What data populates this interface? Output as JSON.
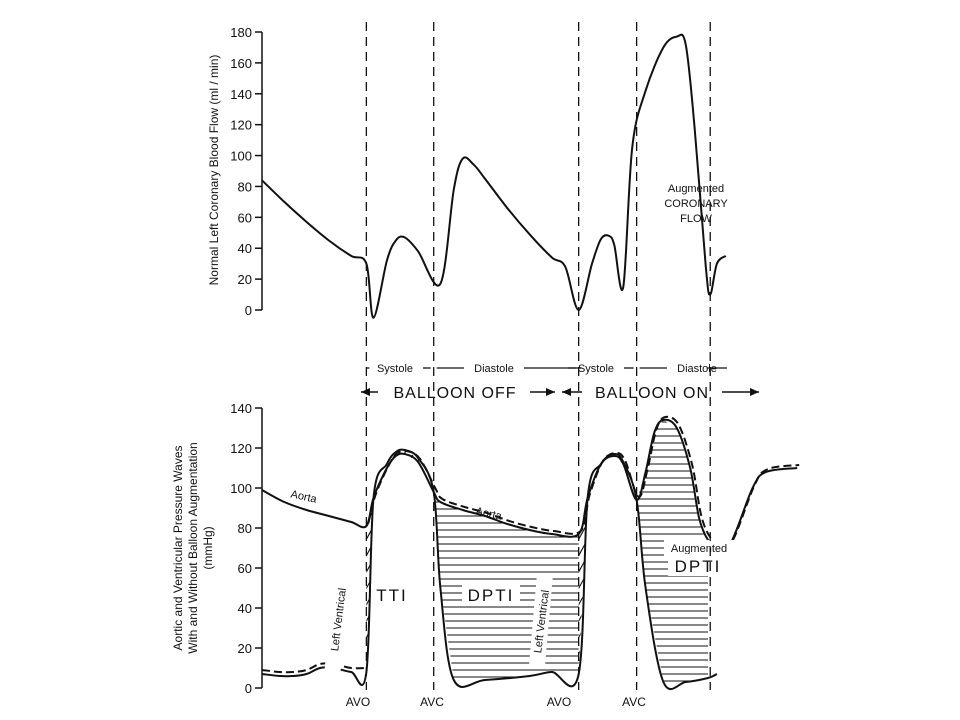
{
  "chart_data": [
    {
      "type": "line",
      "ylabel": "Normal Left Coronary Blood Flow (ml / min)",
      "ylim": [
        0,
        180
      ],
      "yticks": [
        0,
        20,
        40,
        60,
        80,
        100,
        120,
        140,
        160,
        180
      ],
      "series": [
        {
          "x": [
            0,
            0.5,
            1.0,
            1.5,
            2.0,
            2.34,
            2.5,
            2.8,
            3.0,
            3.2,
            3.5,
            4.0,
            4.3,
            4.5,
            4.75,
            5.0,
            5.5,
            6.0,
            6.5,
            6.8,
            7.1,
            7.4,
            7.6,
            7.78,
            7.9,
            8.1,
            8.3,
            8.6,
            9.0,
            9.3,
            9.5,
            9.7,
            9.95,
            10.05,
            10.2,
            10.4
          ],
          "values": [
            84,
            70,
            57,
            45,
            35,
            30,
            -5,
            32,
            45,
            47,
            38,
            17,
            78,
            98,
            94,
            85,
            66,
            49,
            34,
            28,
            0,
            30,
            46,
            48,
            42,
            15,
            105,
            142,
            170,
            177,
            172,
            118,
            28,
            10,
            30,
            35
          ]
        }
      ],
      "annotation": [
        "Augmented",
        "CORONARY",
        "FLOW"
      ]
    },
    {
      "type": "line",
      "ylabel": [
        "Aortic and Ventricular Pressure Waves",
        "With and Without Balloon Augmentation",
        "(mmHg)"
      ],
      "ylim": [
        0,
        140
      ],
      "yticks": [
        0,
        20,
        40,
        60,
        80,
        100,
        120,
        140
      ],
      "series": [
        {
          "name": "Aorta",
          "x": [
            0,
            0.5,
            1.0,
            1.5,
            2.0,
            2.34,
            2.5,
            2.8,
            3.0,
            3.2,
            3.5,
            3.85,
            4.0,
            4.5,
            5.0,
            5.5,
            6.0,
            6.5,
            7.1,
            7.3,
            7.6,
            7.9,
            8.1,
            8.4,
            8.6,
            8.8,
            9.0,
            9.3,
            9.6,
            9.8,
            10.0,
            10.2,
            10.5,
            11.0,
            11.3,
            12.0
          ],
          "values": [
            99,
            93,
            89,
            86,
            83,
            81,
            95,
            110,
            116,
            117,
            113,
            98,
            93,
            89,
            86,
            82,
            79,
            77,
            77,
            95,
            112,
            116,
            112,
            94,
            108,
            128,
            134,
            130,
            110,
            85,
            74,
            71,
            72,
            100,
            108,
            110
          ]
        },
        {
          "name": "Left Ventricle",
          "x": [
            0,
            0.4,
            0.7,
            1.0,
            1.3,
            1.6,
            2.0,
            2.34,
            2.5,
            2.8,
            3.0,
            3.2,
            3.5,
            3.85,
            4.0,
            4.3,
            5.0,
            6.0,
            6.5,
            7.1,
            7.3,
            7.6,
            7.9,
            8.1,
            8.4,
            8.6,
            9.0,
            9.5,
            10.0,
            10.2
          ],
          "values": [
            7,
            6,
            6,
            7,
            10,
            10,
            8,
            8,
            95,
            112,
            118,
            119,
            115,
            98,
            50,
            4,
            4,
            6,
            8,
            7,
            95,
            112,
            117,
            113,
            94,
            50,
            3,
            3,
            5,
            7
          ]
        }
      ],
      "regions": [
        "TTI",
        "DPTI",
        "Augmented",
        "DPTI"
      ],
      "curve_labels": [
        "Aorta",
        "Aorta",
        "Left Ventrical",
        "Left Ventrical"
      ],
      "markers": [
        "AVO",
        "AVC",
        "AVO",
        "AVC"
      ],
      "phases": {
        "row1": [
          "Systole",
          "Diastole",
          "Systole",
          "Diastole"
        ],
        "row2": [
          "BALLOON OFF",
          "BALLOON ON"
        ]
      },
      "phase_boundaries_x": [
        2.34,
        3.85,
        7.1,
        8.4,
        10.05
      ]
    }
  ]
}
